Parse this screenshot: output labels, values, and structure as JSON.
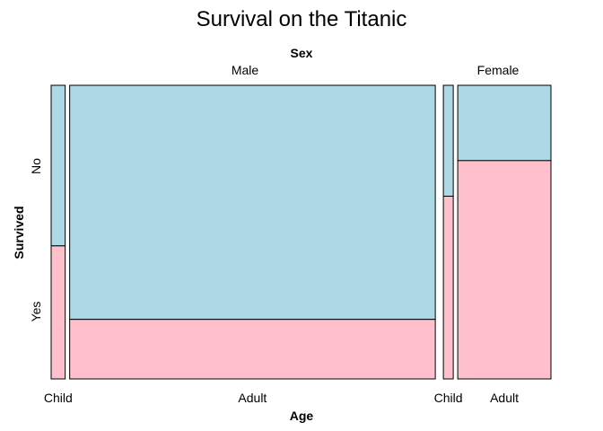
{
  "chart_data": {
    "type": "mosaic",
    "title": "Survival on the Titanic",
    "xlabel": "Age",
    "ylabel": "Survived",
    "group_label": "Sex",
    "colors": {
      "No": "#add8e6",
      "Yes": "#ffc0cb"
    },
    "levels": {
      "Sex": [
        "Male",
        "Female"
      ],
      "Age": [
        "Child",
        "Adult"
      ],
      "Survived": [
        "No",
        "Yes"
      ]
    },
    "cells": [
      {
        "sex": "Male",
        "age": "Child",
        "no": 35,
        "yes": 29
      },
      {
        "sex": "Male",
        "age": "Adult",
        "no": 1329,
        "yes": 338
      },
      {
        "sex": "Female",
        "age": "Child",
        "no": 17,
        "yes": 28
      },
      {
        "sex": "Female",
        "age": "Adult",
        "no": 109,
        "yes": 316
      }
    ]
  }
}
